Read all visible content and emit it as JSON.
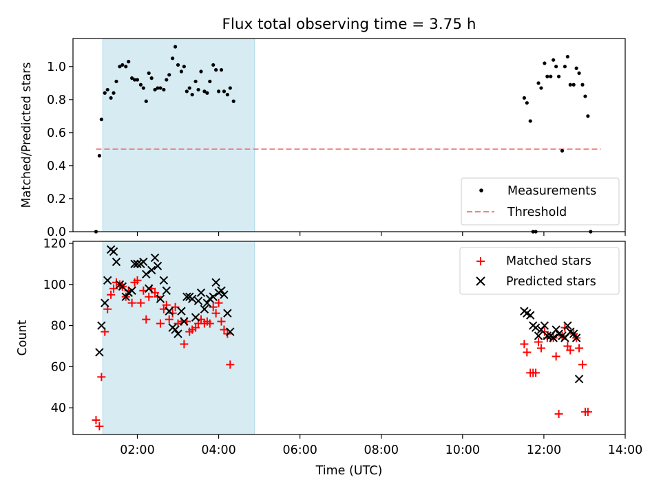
{
  "figure": {
    "title": "Flux total observing time = 3.75 h",
    "xlabel": "Time (UTC)"
  },
  "chart_data": [
    {
      "type": "scatter",
      "ylabel": "Matched/Predicted stars",
      "ylim": [
        0,
        1.17
      ],
      "xlim": [
        "00:25",
        "14:00"
      ],
      "yticks": [
        "0.0",
        "0.2",
        "0.4",
        "0.6",
        "0.8",
        "1.0"
      ],
      "shaded_span": [
        "01:09",
        "04:53"
      ],
      "shaded_color": "#add8e6",
      "legend": {
        "position": "lower right"
      },
      "threshold": {
        "name": "Threshold",
        "value": 0.5,
        "x": [
          "00:59",
          "13:24"
        ],
        "color": "#f08080"
      },
      "series": [
        {
          "name": "Measurements",
          "marker": "dot",
          "color": "#000000",
          "points": [
            [
              "00:59",
              0.0
            ],
            [
              "01:04",
              0.46
            ],
            [
              "01:07",
              0.68
            ],
            [
              "01:12",
              0.84
            ],
            [
              "01:16",
              0.86
            ],
            [
              "01:21",
              0.81
            ],
            [
              "01:25",
              0.84
            ],
            [
              "01:29",
              0.91
            ],
            [
              "01:34",
              1.0
            ],
            [
              "01:38",
              1.01
            ],
            [
              "01:43",
              1.0
            ],
            [
              "01:47",
              1.03
            ],
            [
              "01:52",
              0.93
            ],
            [
              "01:56",
              0.92
            ],
            [
              "02:00",
              0.92
            ],
            [
              "02:05",
              0.89
            ],
            [
              "02:09",
              0.87
            ],
            [
              "02:13",
              0.79
            ],
            [
              "02:17",
              0.96
            ],
            [
              "02:21",
              0.93
            ],
            [
              "02:26",
              0.86
            ],
            [
              "02:30",
              0.87
            ],
            [
              "02:34",
              0.87
            ],
            [
              "02:39",
              0.86
            ],
            [
              "02:43",
              0.92
            ],
            [
              "02:47",
              0.95
            ],
            [
              "02:52",
              1.05
            ],
            [
              "02:56",
              1.12
            ],
            [
              "03:00",
              1.01
            ],
            [
              "03:05",
              0.97
            ],
            [
              "03:09",
              1.0
            ],
            [
              "03:13",
              0.85
            ],
            [
              "03:17",
              0.87
            ],
            [
              "03:21",
              0.83
            ],
            [
              "03:26",
              0.91
            ],
            [
              "03:30",
              0.86
            ],
            [
              "03:34",
              0.97
            ],
            [
              "03:39",
              0.85
            ],
            [
              "03:43",
              0.84
            ],
            [
              "03:47",
              0.91
            ],
            [
              "03:52",
              1.01
            ],
            [
              "03:56",
              0.98
            ],
            [
              "04:00",
              0.85
            ],
            [
              "04:04",
              0.98
            ],
            [
              "04:08",
              0.85
            ],
            [
              "04:13",
              0.83
            ],
            [
              "04:17",
              0.87
            ],
            [
              "04:22",
              0.79
            ],
            [
              "11:31",
              0.81
            ],
            [
              "11:35",
              0.78
            ],
            [
              "11:40",
              0.67
            ],
            [
              "11:44",
              0.0
            ],
            [
              "11:48",
              0.0
            ],
            [
              "11:52",
              0.9
            ],
            [
              "11:56",
              0.87
            ],
            [
              "12:01",
              1.02
            ],
            [
              "12:05",
              0.94
            ],
            [
              "12:10",
              0.94
            ],
            [
              "12:14",
              1.04
            ],
            [
              "12:18",
              1.0
            ],
            [
              "12:22",
              0.94
            ],
            [
              "12:27",
              0.49
            ],
            [
              "12:31",
              1.0
            ],
            [
              "12:35",
              1.06
            ],
            [
              "12:39",
              0.89
            ],
            [
              "12:44",
              0.89
            ],
            [
              "12:48",
              0.99
            ],
            [
              "12:52",
              0.96
            ],
            [
              "12:57",
              0.89
            ],
            [
              "13:01",
              0.82
            ],
            [
              "13:05",
              0.7
            ],
            [
              "13:09",
              0.0
            ]
          ]
        }
      ]
    },
    {
      "type": "scatter",
      "ylabel": "Count",
      "ylim": [
        27,
        121
      ],
      "xlim": [
        "00:25",
        "14:00"
      ],
      "yticks": [
        "40",
        "60",
        "80",
        "100",
        "120"
      ],
      "xticks": [
        "02:00",
        "04:00",
        "06:00",
        "08:00",
        "10:00",
        "12:00",
        "14:00"
      ],
      "shaded_span": [
        "01:09",
        "04:53"
      ],
      "shaded_color": "#add8e6",
      "legend": {
        "position": "upper right"
      },
      "series": [
        {
          "name": "Matched stars",
          "marker": "plus",
          "color": "#ff0000",
          "points": [
            [
              "00:59",
              34
            ],
            [
              "01:04",
              31
            ],
            [
              "01:07",
              55
            ],
            [
              "01:12",
              77
            ],
            [
              "01:16",
              88
            ],
            [
              "01:21",
              95
            ],
            [
              "01:25",
              98
            ],
            [
              "01:29",
              101
            ],
            [
              "01:34",
              100
            ],
            [
              "01:38",
              99
            ],
            [
              "01:43",
              94
            ],
            [
              "01:47",
              97
            ],
            [
              "01:52",
              91
            ],
            [
              "01:56",
              101
            ],
            [
              "02:00",
              102
            ],
            [
              "02:05",
              91
            ],
            [
              "02:09",
              97
            ],
            [
              "02:13",
              83
            ],
            [
              "02:17",
              94
            ],
            [
              "02:21",
              98
            ],
            [
              "02:26",
              96
            ],
            [
              "02:30",
              94
            ],
            [
              "02:34",
              81
            ],
            [
              "02:39",
              88
            ],
            [
              "02:43",
              90
            ],
            [
              "02:47",
              83
            ],
            [
              "02:52",
              86
            ],
            [
              "02:56",
              89
            ],
            [
              "03:00",
              81
            ],
            [
              "03:05",
              82
            ],
            [
              "03:09",
              71
            ],
            [
              "03:13",
              82
            ],
            [
              "03:17",
              77
            ],
            [
              "03:21",
              78
            ],
            [
              "03:26",
              79
            ],
            [
              "03:30",
              81
            ],
            [
              "03:34",
              83
            ],
            [
              "03:39",
              81
            ],
            [
              "03:43",
              82
            ],
            [
              "03:47",
              81
            ],
            [
              "03:52",
              89
            ],
            [
              "03:56",
              86
            ],
            [
              "04:00",
              91
            ],
            [
              "04:04",
              82
            ],
            [
              "04:08",
              78
            ],
            [
              "04:13",
              76
            ],
            [
              "04:17",
              61
            ],
            [
              "11:31",
              71
            ],
            [
              "11:35",
              67
            ],
            [
              "11:40",
              57
            ],
            [
              "11:44",
              57
            ],
            [
              "11:48",
              57
            ],
            [
              "11:52",
              72
            ],
            [
              "11:56",
              69
            ],
            [
              "12:01",
              77
            ],
            [
              "12:05",
              74
            ],
            [
              "12:10",
              74
            ],
            [
              "12:14",
              74
            ],
            [
              "12:18",
              65
            ],
            [
              "12:22",
              37
            ],
            [
              "12:27",
              75
            ],
            [
              "12:31",
              79
            ],
            [
              "12:35",
              70
            ],
            [
              "12:39",
              68
            ],
            [
              "12:44",
              76
            ],
            [
              "12:48",
              74
            ],
            [
              "12:52",
              69
            ],
            [
              "12:57",
              61
            ],
            [
              "13:01",
              38
            ],
            [
              "13:05",
              38
            ]
          ]
        },
        {
          "name": "Predicted stars",
          "marker": "x",
          "color": "#000000",
          "points": [
            [
              "01:04",
              67
            ],
            [
              "01:07",
              80
            ],
            [
              "01:12",
              91
            ],
            [
              "01:16",
              102
            ],
            [
              "01:21",
              117
            ],
            [
              "01:25",
              116
            ],
            [
              "01:29",
              111
            ],
            [
              "01:34",
              100
            ],
            [
              "01:38",
              99
            ],
            [
              "01:43",
              94
            ],
            [
              "01:47",
              96
            ],
            [
              "01:52",
              97
            ],
            [
              "01:56",
              110
            ],
            [
              "02:00",
              110
            ],
            [
              "02:05",
              110
            ],
            [
              "02:09",
              111
            ],
            [
              "02:13",
              105
            ],
            [
              "02:17",
              98
            ],
            [
              "02:21",
              107
            ],
            [
              "02:26",
              113
            ],
            [
              "02:30",
              109
            ],
            [
              "02:34",
              93
            ],
            [
              "02:39",
              102
            ],
            [
              "02:43",
              97
            ],
            [
              "02:47",
              87
            ],
            [
              "02:52",
              79
            ],
            [
              "02:56",
              78
            ],
            [
              "03:00",
              76
            ],
            [
              "03:05",
              87
            ],
            [
              "03:09",
              82
            ],
            [
              "03:13",
              94
            ],
            [
              "03:17",
              94
            ],
            [
              "03:21",
              93
            ],
            [
              "03:26",
              84
            ],
            [
              "03:30",
              92
            ],
            [
              "03:34",
              96
            ],
            [
              "03:39",
              88
            ],
            [
              "03:43",
              91
            ],
            [
              "03:47",
              93
            ],
            [
              "03:52",
              94
            ],
            [
              "03:56",
              101
            ],
            [
              "04:00",
              96
            ],
            [
              "04:04",
              97
            ],
            [
              "04:08",
              95
            ],
            [
              "04:13",
              86
            ],
            [
              "04:17",
              77
            ],
            [
              "11:31",
              87
            ],
            [
              "11:35",
              86
            ],
            [
              "11:40",
              85
            ],
            [
              "11:44",
              80
            ],
            [
              "11:48",
              79
            ],
            [
              "11:52",
              75
            ],
            [
              "11:56",
              78
            ],
            [
              "12:01",
              80
            ],
            [
              "12:05",
              75
            ],
            [
              "12:10",
              75
            ],
            [
              "12:14",
              74
            ],
            [
              "12:18",
              78
            ],
            [
              "12:22",
              76
            ],
            [
              "12:27",
              75
            ],
            [
              "12:31",
              74
            ],
            [
              "12:35",
              80
            ],
            [
              "12:39",
              77
            ],
            [
              "12:44",
              76
            ],
            [
              "12:48",
              74
            ],
            [
              "12:52",
              54
            ]
          ]
        }
      ]
    }
  ]
}
